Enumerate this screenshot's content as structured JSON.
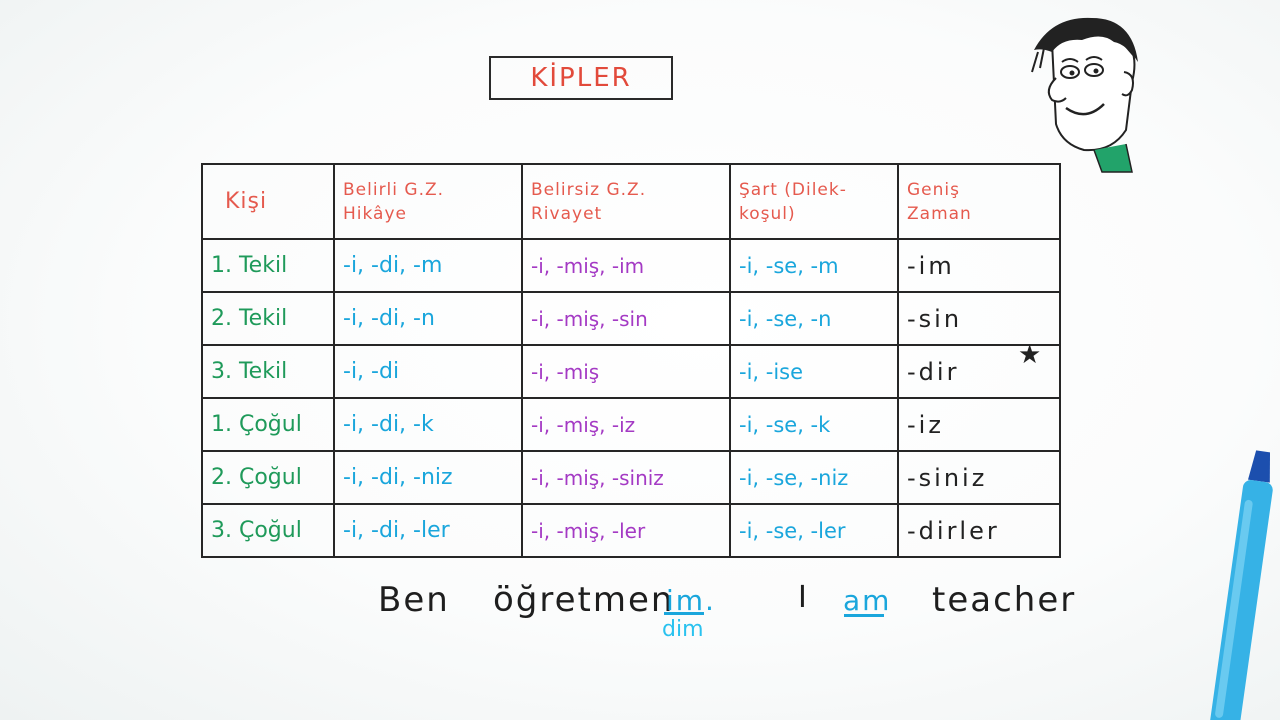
{
  "title": "KİPLER",
  "table": {
    "headers": [
      "Kişi",
      "Belirli G.Z.",
      "Hikâye",
      "Belirsiz G.Z.",
      "Rivayet",
      "Şart (Dilek-",
      "koşul)",
      "Geniş",
      "Zaman"
    ],
    "rows": [
      {
        "person": "1. Tekil",
        "c1": "-i, -di, -m",
        "c2": "-i, -miş, -im",
        "c3": "-i, -se, -m",
        "c4": "-im"
      },
      {
        "person": "2. Tekil",
        "c1": "-i, -di, -n",
        "c2": "-i, -miş, -sin",
        "c3": "-i, -se, -n",
        "c4": "-sin"
      },
      {
        "person": "3. Tekil",
        "c1": "-i, -di",
        "c2": "-i, -miş",
        "c3": "-i, -ise",
        "c4": "-dir"
      },
      {
        "person": "1. Çoğul",
        "c1": "-i, -di, -k",
        "c2": "-i, -miş, -iz",
        "c3": "-i, -se, -k",
        "c4": "-iz"
      },
      {
        "person": "2. Çoğul",
        "c1": "-i, -di, -niz",
        "c2": "-i, -miş, -siniz",
        "c3": "-i, -se, -niz",
        "c4": "-siniz"
      },
      {
        "person": "3. Çoğul",
        "c1": "-i, -di, -ler",
        "c2": "-i, -miş, -ler",
        "c3": "-i, -se, -ler",
        "c4": "-dirler"
      }
    ]
  },
  "star": "★",
  "sentence": {
    "word1": "Ben",
    "word2": "öğretmen",
    "suffix": "im.",
    "suffix_alt": "dim",
    "english_i": "I",
    "english_am": "am",
    "english_teacher": "teacher"
  },
  "colors": {
    "title": "#e24a3b",
    "header": "#e55a4e",
    "person": "#1f9a5a",
    "blue": "#1aa6dc",
    "purple": "#a43ac4",
    "ink": "#222222"
  },
  "icons": {
    "cartoon": "cartoon-face-icon",
    "marker": "blue-marker-icon"
  }
}
